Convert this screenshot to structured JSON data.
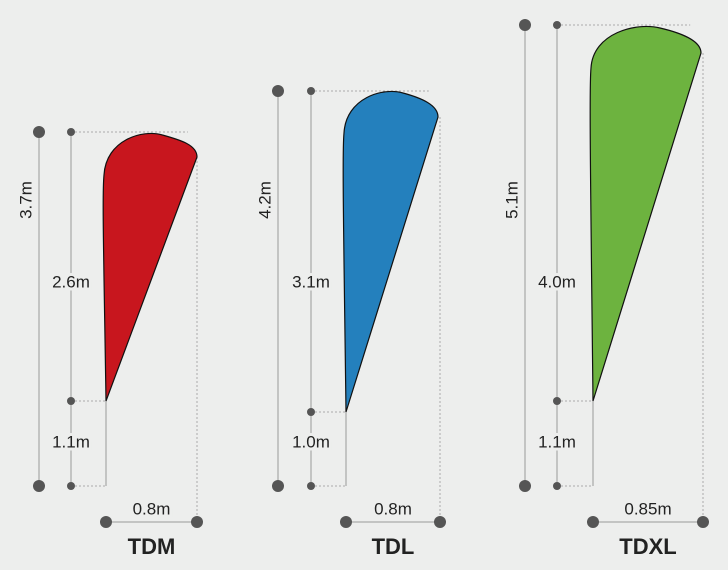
{
  "flags": [
    {
      "name": "TDM",
      "total_height": "3.7m",
      "flag_height": "2.6m",
      "pole_gap": "1.1m",
      "width": "0.8m",
      "color": "#c8161e"
    },
    {
      "name": "TDL",
      "total_height": "4.2m",
      "flag_height": "3.1m",
      "pole_gap": "1.0m",
      "width": "0.8m",
      "color": "#2480bd"
    },
    {
      "name": "TDXL",
      "total_height": "5.1m",
      "flag_height": "4.0m",
      "pole_gap": "1.1m",
      "width": "0.85m",
      "color": "#6db33f"
    }
  ]
}
